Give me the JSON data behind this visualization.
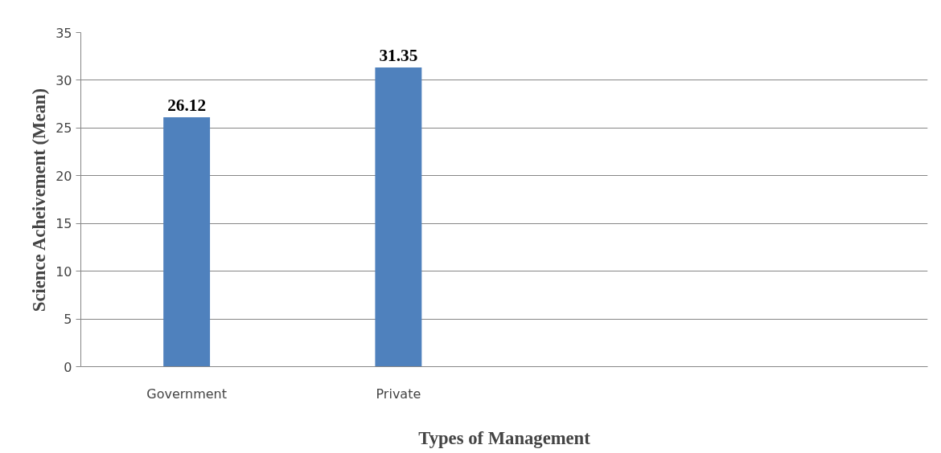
{
  "chart_data": {
    "type": "bar",
    "xlabel": "Types of Management",
    "ylabel": "Science Acheivement (Mean)",
    "categories": [
      "Government",
      "Private",
      null,
      null
    ],
    "values": [
      26.12,
      31.35,
      null,
      null
    ],
    "color": "#4f81bd",
    "ylim": [
      0,
      35
    ],
    "yticks": [
      0,
      5,
      10,
      15,
      20,
      25,
      30,
      35
    ],
    "grid": "y",
    "data_labels": true
  }
}
